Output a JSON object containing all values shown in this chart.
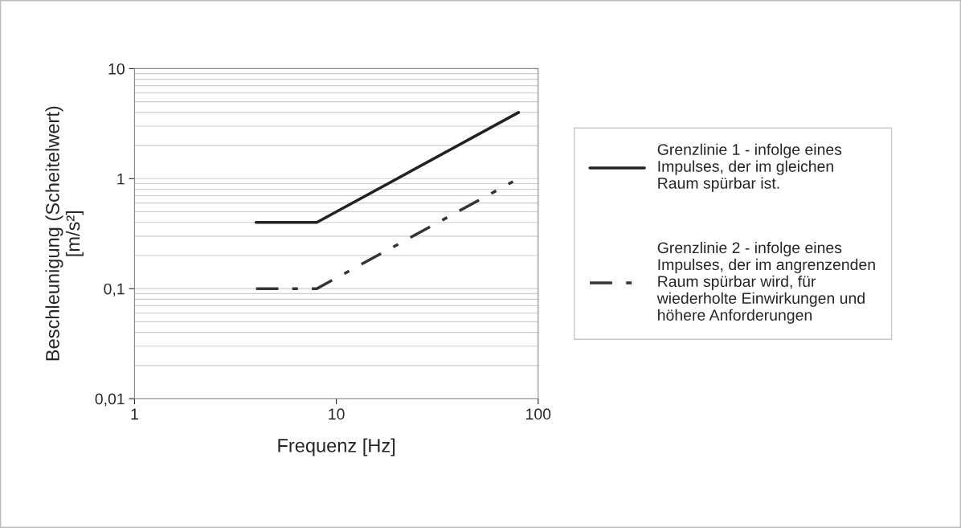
{
  "chart_data": {
    "type": "line",
    "xlabel": "Frequenz [Hz]",
    "ylabel": "Beschleunigung (Scheitelwert)\n[m/s²]",
    "log": "xy",
    "xlim": [
      1,
      100
    ],
    "ylim": [
      0.01,
      10
    ],
    "xticks": [
      1,
      10,
      100
    ],
    "yticks": [
      {
        "value": 0.01,
        "label": "0,01"
      },
      {
        "value": 0.1,
        "label": "0,1"
      },
      1,
      10
    ],
    "grid": "y",
    "legend": "right",
    "marker": "none",
    "series": [
      {
        "name": "Grenzlinie 1 - infolge eines\nImpulses, der im gleichen\nRaum spürbar ist.",
        "color": "#222222",
        "line_style": "solid",
        "x": [
          4,
          8,
          80
        ],
        "values": [
          0.4,
          0.4,
          4
        ]
      },
      {
        "name": "Grenzlinie 2 - infolge eines\nImpulses, der im angrenzenden\nRaum spürbar wird, für\nwiederholte Einwirkungen und\nhöhere Anforderungen",
        "color": "#333333",
        "line_style": "dashed",
        "x": [
          4,
          8,
          75
        ],
        "values": [
          0.1,
          0.1,
          0.94
        ]
      }
    ]
  }
}
